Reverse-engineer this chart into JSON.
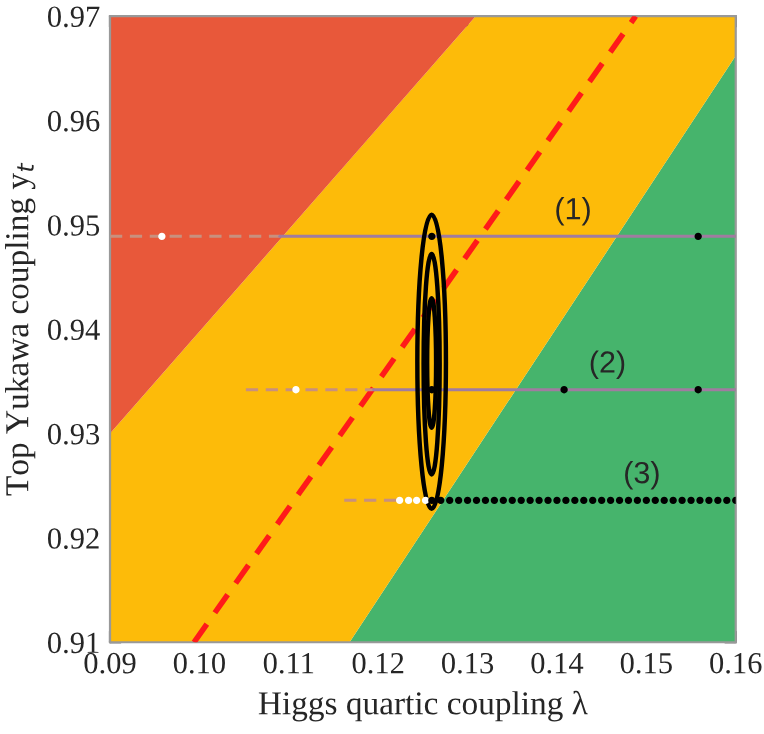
{
  "chart_data": {
    "type": "area",
    "xlabel": "Higgs quartic coupling λ",
    "ylabel": "Top Yukawa coupling y$_{t}$",
    "xlim": [
      0.09,
      0.16
    ],
    "ylim": [
      0.91,
      0.97
    ],
    "xticks": [
      {
        "value": 0.09,
        "label": "0.09"
      },
      {
        "value": 0.1,
        "label": "0.10"
      },
      {
        "value": 0.11,
        "label": "0.11"
      },
      {
        "value": 0.12,
        "label": "0.12"
      },
      {
        "value": 0.13,
        "label": "0.13"
      },
      {
        "value": 0.14,
        "label": "0.14"
      },
      {
        "value": 0.15,
        "label": "0.15"
      },
      {
        "value": 0.16,
        "label": "0.16"
      }
    ],
    "yticks": [
      {
        "value": 0.91,
        "label": "0.91"
      },
      {
        "value": 0.92,
        "label": "0.92"
      },
      {
        "value": 0.93,
        "label": "0.93"
      },
      {
        "value": 0.94,
        "label": "0.94"
      },
      {
        "value": 0.95,
        "label": "0.95"
      },
      {
        "value": 0.96,
        "label": "0.96"
      },
      {
        "value": 0.97,
        "label": "0.97"
      }
    ],
    "grid": false,
    "legend": false,
    "series": [
      {
        "color": "#46b46c",
        "x": [
          0.1168,
          0.16
        ],
        "values": [
          0.91,
          0.9662
        ]
      },
      {
        "color": "#fdbb09",
        "x": [
          0.09,
          0.1309,
          0.16
        ],
        "values": [
          0.93,
          0.97,
          0.97
        ]
      },
      {
        "color": "#e8583a",
        "x": [
          0.09,
          0.16
        ],
        "values": [
          0.97,
          0.97
        ]
      },
      {
        "type": "line",
        "color": "#ff1a1a",
        "line_style": "dashed",
        "x": [
          0.0994,
          0.1488
        ],
        "values": [
          0.91,
          0.97
        ]
      },
      {
        "type": "line",
        "color": "#c8907e",
        "line_style": "dashed",
        "x": [
          0.09,
          0.109
        ],
        "values": [
          0.9489,
          0.9489
        ]
      },
      {
        "type": "line",
        "name": "(1)",
        "color": "#a07ca0",
        "line_style": "solid",
        "x": [
          0.109,
          0.16
        ],
        "values": [
          0.9489,
          0.9489
        ]
      },
      {
        "type": "line",
        "color": "#c8907e",
        "line_style": "dashed",
        "x": [
          0.1052,
          0.1195
        ],
        "values": [
          0.9342,
          0.9342
        ]
      },
      {
        "type": "line",
        "name": "(2)",
        "color": "#a07ca0",
        "line_style": "solid",
        "x": [
          0.1195,
          0.16
        ],
        "values": [
          0.9342,
          0.9342
        ]
      },
      {
        "type": "line",
        "color": "#c8907e",
        "line_style": "dashed",
        "x": [
          0.1162,
          0.122
        ],
        "values": [
          0.9236,
          0.9236
        ]
      },
      {
        "type": "scatter",
        "color": "#ffffff",
        "marker": "circle",
        "x": [
          0.0958,
          0.1108,
          0.1224,
          0.1234,
          0.1243,
          0.1253
        ],
        "values": [
          0.9489,
          0.9342,
          0.9236,
          0.9236,
          0.9236,
          0.9236
        ]
      },
      {
        "type": "scatter",
        "color": "#000000",
        "marker": "circle",
        "x": [
          0.126,
          0.1558,
          0.126,
          0.1408,
          0.1558
        ],
        "values": [
          0.9489,
          0.9489,
          0.9342,
          0.9342,
          0.9342
        ]
      },
      {
        "type": "scatter",
        "name": "(3)",
        "color": "#000000",
        "marker": "circle",
        "x": [
          0.126,
          0.127,
          0.128,
          0.129,
          0.13,
          0.131,
          0.132,
          0.133,
          0.134,
          0.135,
          0.136,
          0.137,
          0.138,
          0.139,
          0.14,
          0.141,
          0.142,
          0.143,
          0.144,
          0.145,
          0.146,
          0.147,
          0.148,
          0.149,
          0.15,
          0.151,
          0.152,
          0.153,
          0.154,
          0.155,
          0.156,
          0.157,
          0.158,
          0.159,
          0.16
        ],
        "values": [
          0.9236,
          0.9236,
          0.9236,
          0.9236,
          0.9236,
          0.9236,
          0.9236,
          0.9236,
          0.9236,
          0.9236,
          0.9236,
          0.9236,
          0.9236,
          0.9236,
          0.9236,
          0.9236,
          0.9236,
          0.9236,
          0.9236,
          0.9236,
          0.9236,
          0.9236,
          0.9236,
          0.9236,
          0.9236,
          0.9236,
          0.9236,
          0.9236,
          0.9236,
          0.9236,
          0.9236,
          0.9236,
          0.9236,
          0.9236,
          0.9236
        ]
      }
    ]
  }
}
